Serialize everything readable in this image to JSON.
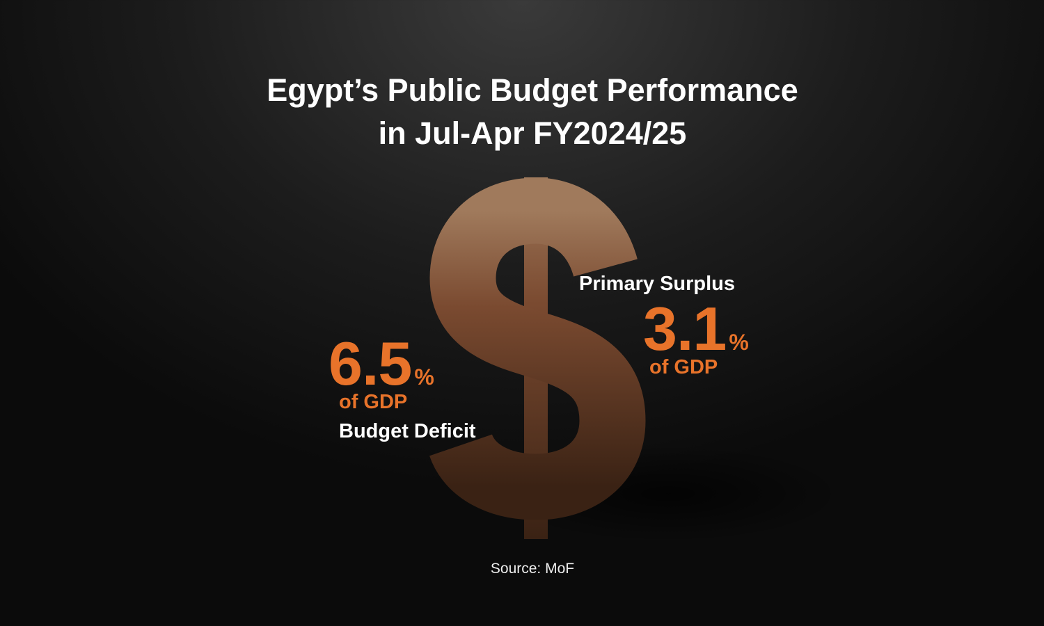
{
  "title": [
    "Egypt’s Public Budget Performance",
    "in Jul-Apr FY2024/25"
  ],
  "deficit": {
    "value": 6.5,
    "unit": "%",
    "basis": "of GDP",
    "label": "Budget Deficit"
  },
  "surplus": {
    "label": "Primary Surplus",
    "value": 3.1,
    "unit": "%",
    "basis": "of GDP"
  },
  "source": "Source: MoF"
}
